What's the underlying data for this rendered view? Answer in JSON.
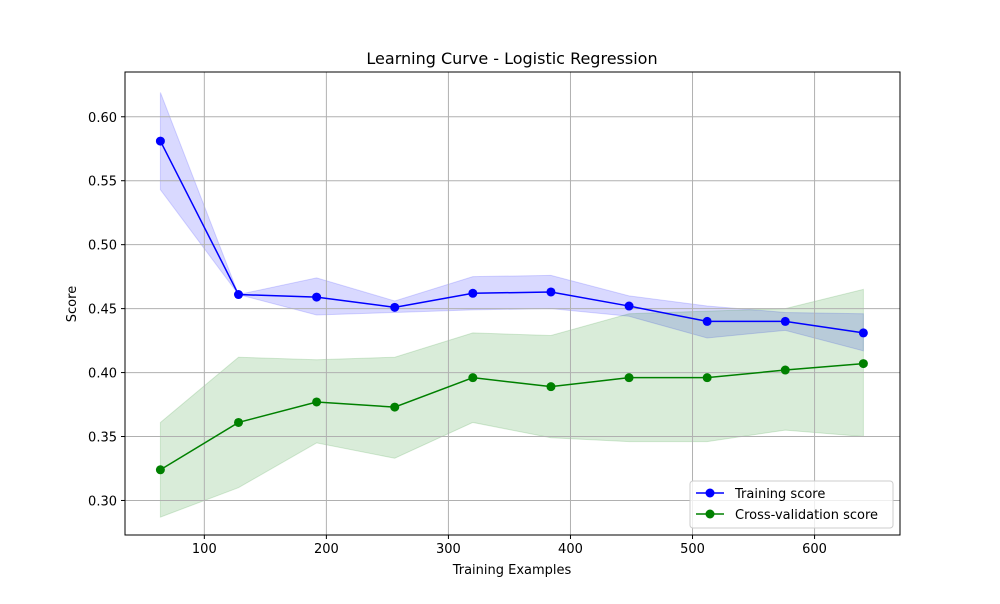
{
  "chart_data": {
    "type": "line",
    "title": "Learning Curve - Logistic Regression",
    "xlabel": "Training Examples",
    "ylabel": "Score",
    "xlim": [
      35,
      670
    ],
    "ylim": [
      0.273,
      0.635
    ],
    "xticks": [
      100,
      200,
      300,
      400,
      500,
      600
    ],
    "yticks": [
      0.3,
      0.35,
      0.4,
      0.45,
      0.5,
      0.55,
      0.6
    ],
    "grid": true,
    "legend_position": "bottom-right",
    "x": [
      64,
      128,
      192,
      256,
      320,
      384,
      448,
      512,
      576,
      640
    ],
    "series": [
      {
        "name": "Training score",
        "color": "#0000ff",
        "marker": "circle",
        "values": [
          0.581,
          0.461,
          0.459,
          0.451,
          0.462,
          0.463,
          0.452,
          0.44,
          0.44,
          0.431
        ],
        "band_upper": [
          0.619,
          0.461,
          0.474,
          0.456,
          0.475,
          0.476,
          0.46,
          0.452,
          0.447,
          0.446
        ],
        "band_lower": [
          0.543,
          0.461,
          0.445,
          0.447,
          0.449,
          0.45,
          0.444,
          0.427,
          0.433,
          0.417
        ],
        "band_color": "#0000ff"
      },
      {
        "name": "Cross-validation score",
        "color": "#008000",
        "marker": "circle",
        "values": [
          0.324,
          0.361,
          0.377,
          0.373,
          0.396,
          0.389,
          0.396,
          0.396,
          0.402,
          0.407
        ],
        "band_upper": [
          0.361,
          0.412,
          0.41,
          0.412,
          0.431,
          0.429,
          0.446,
          0.448,
          0.45,
          0.465
        ],
        "band_lower": [
          0.287,
          0.31,
          0.345,
          0.333,
          0.361,
          0.349,
          0.346,
          0.346,
          0.355,
          0.35
        ],
        "band_color": "#008000"
      }
    ]
  }
}
